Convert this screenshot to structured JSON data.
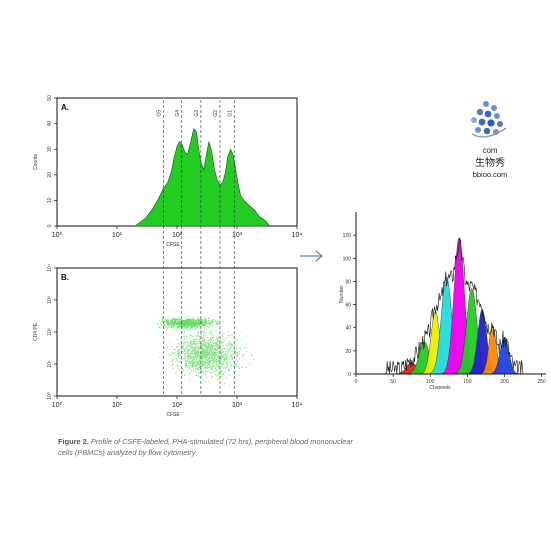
{
  "caption": {
    "lead": "Figure 2.",
    "text": "Profile of CSFE-labeled, PHA-stimulated (72 hrs), peripheral blood mononuclear cells (PBMCs) analyzed by flow cytometry."
  },
  "watermark": {
    "line1": "com",
    "line2": "生物秀",
    "line3": "bbioo.com"
  },
  "chart_data": [
    {
      "type": "area",
      "panel_label": "A.",
      "xlabel": "CFSE",
      "ylabel": "Counts",
      "x_scale": "log",
      "xlim": [
        1,
        10000
      ],
      "ylim": [
        0,
        50
      ],
      "x_tick_labels": [
        "10⁰",
        "10¹",
        "10²",
        "10³",
        "10⁴"
      ],
      "y_tick_labels": [
        "0",
        "10",
        "20",
        "30",
        "40",
        "50"
      ],
      "gates": [
        {
          "label": "G5",
          "x": 60
        },
        {
          "label": "G4",
          "x": 120
        },
        {
          "label": "G3",
          "x": 250
        },
        {
          "label": "G2",
          "x": 520
        },
        {
          "label": "G1",
          "x": 900
        }
      ],
      "color": "#22cc22",
      "x": [
        20,
        30,
        40,
        50,
        60,
        70,
        80,
        90,
        100,
        110,
        120,
        135,
        150,
        170,
        190,
        210,
        230,
        250,
        280,
        310,
        340,
        380,
        420,
        470,
        520,
        580,
        640,
        700,
        780,
        860,
        950,
        1050,
        1150,
        1300,
        1450,
        1600,
        1800,
        2000,
        2300,
        2600,
        3000,
        3500
      ],
      "y": [
        0,
        3,
        7,
        11,
        15,
        17,
        21,
        27,
        31,
        33,
        32,
        29,
        28,
        33,
        38,
        37,
        30,
        25,
        22,
        28,
        33,
        29,
        22,
        18,
        16,
        17,
        21,
        27,
        30,
        28,
        22,
        16,
        12,
        10,
        9,
        8,
        7,
        6,
        4,
        3,
        2,
        0
      ]
    },
    {
      "type": "scatter",
      "panel_label": "B.",
      "xlabel": "CFSE",
      "ylabel": "CD4 PE",
      "x_scale": "log",
      "y_scale": "log",
      "xlim": [
        1,
        10000
      ],
      "ylim": [
        1,
        10000
      ],
      "x_tick_labels": [
        "10⁰",
        "10¹",
        "10²",
        "10³",
        "10⁴"
      ],
      "y_tick_labels": [
        "10⁰",
        "10¹",
        "10²",
        "10³",
        "10⁴"
      ],
      "color": "#66dd66",
      "clusters": [
        {
          "x_center": 150,
          "y_center": 200,
          "x_spread": 0.35,
          "y_spread": 0.12,
          "count": 900
        },
        {
          "x_center": 300,
          "y_center": 20,
          "x_spread": 0.45,
          "y_spread": 0.55,
          "count": 1400
        }
      ]
    },
    {
      "type": "area",
      "xlabel": "Channels",
      "ylabel": "Number",
      "xlim": [
        0,
        256
      ],
      "ylim": [
        0,
        140
      ],
      "x_tick_labels": [
        "0",
        "50",
        "100",
        "150",
        "200",
        "250"
      ],
      "y_tick_labels": [
        "0",
        "20",
        "40",
        "60",
        "80",
        "100",
        "120"
      ],
      "series": [
        {
          "color": "#dd2222",
          "center": 75,
          "sd": 7,
          "height": 10
        },
        {
          "color": "#22cc22",
          "center": 92,
          "sd": 7,
          "height": 28
        },
        {
          "color": "#eeee00",
          "center": 107,
          "sd": 6,
          "height": 54
        },
        {
          "color": "#22dddd",
          "center": 122,
          "sd": 7,
          "height": 84
        },
        {
          "color": "#ee00ee",
          "center": 139,
          "sd": 7,
          "height": 118
        },
        {
          "color": "#22cc22",
          "center": 156,
          "sd": 7,
          "height": 74
        },
        {
          "color": "#2222cc",
          "center": 170,
          "sd": 6,
          "height": 56
        },
        {
          "color": "#ff8800",
          "center": 184,
          "sd": 5,
          "height": 42
        },
        {
          "color": "#2244dd",
          "center": 200,
          "sd": 6,
          "height": 31
        }
      ]
    }
  ]
}
